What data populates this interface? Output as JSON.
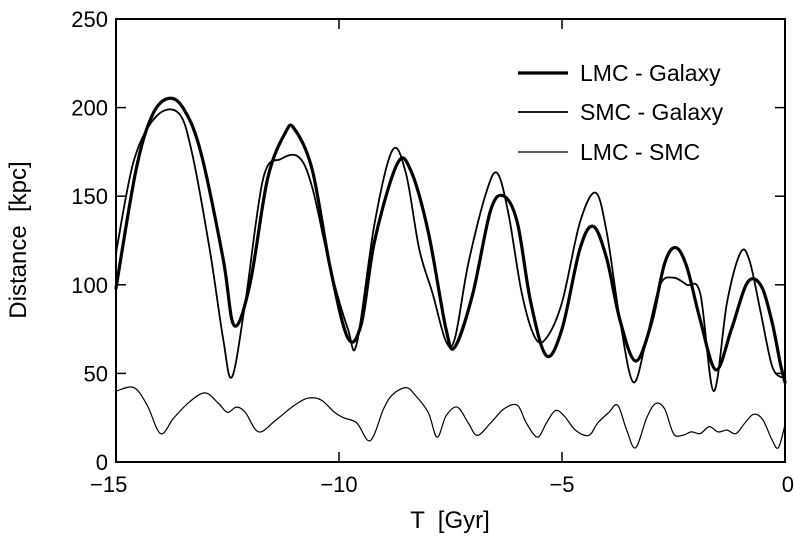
{
  "chart_data": {
    "type": "line",
    "title": "",
    "xlabel": "T  [Gyr]",
    "ylabel": "Distance  [kpc]",
    "xlim": [
      -15,
      0
    ],
    "ylim": [
      0,
      250
    ],
    "xticks": [
      -15,
      -10,
      -5,
      0
    ],
    "xtick_labels": [
      "−15",
      "−10",
      "−5",
      "0"
    ],
    "yticks": [
      0,
      50,
      100,
      150,
      200,
      250
    ],
    "ytick_labels": [
      "0",
      "50",
      "100",
      "150",
      "200",
      "250"
    ],
    "legend_position": "top-right",
    "grid": false,
    "series": [
      {
        "name": "LMC - Galaxy",
        "line": "thick",
        "x": [
          -15.0,
          -14.55,
          -14.2,
          -13.85,
          -13.5,
          -13.1,
          -12.6,
          -12.35,
          -12.0,
          -11.6,
          -11.2,
          -11.0,
          -10.6,
          -10.2,
          -9.8,
          -9.5,
          -9.2,
          -8.7,
          -8.4,
          -8.0,
          -7.6,
          -7.4,
          -7.0,
          -6.6,
          -6.3,
          -6.0,
          -5.7,
          -5.35,
          -5.0,
          -4.6,
          -4.3,
          -4.0,
          -3.7,
          -3.35,
          -3.0,
          -2.7,
          -2.45,
          -2.2,
          -1.9,
          -1.55,
          -1.2,
          -0.85,
          -0.55,
          -0.3,
          -0.1,
          0.0
        ],
        "y": [
          98,
          165,
          195,
          205,
          200,
          175,
          115,
          77,
          100,
          160,
          186,
          188,
          165,
          110,
          70,
          78,
          125,
          168,
          165,
          130,
          75,
          65,
          95,
          142,
          150,
          135,
          90,
          60,
          75,
          120,
          133,
          115,
          80,
          57,
          78,
          112,
          121,
          110,
          80,
          52,
          75,
          101,
          100,
          80,
          55,
          45
        ]
      },
      {
        "name": "SMC - Galaxy",
        "line": "medium",
        "x": [
          -15.0,
          -14.6,
          -14.1,
          -13.6,
          -13.3,
          -12.9,
          -12.6,
          -12.4,
          -12.1,
          -11.7,
          -11.3,
          -10.9,
          -10.6,
          -10.2,
          -9.8,
          -9.6,
          -9.2,
          -8.8,
          -8.5,
          -8.2,
          -7.9,
          -7.6,
          -7.4,
          -7.1,
          -6.7,
          -6.45,
          -6.2,
          -5.9,
          -5.6,
          -5.35,
          -5.0,
          -4.6,
          -4.25,
          -4.0,
          -3.7,
          -3.4,
          -3.1,
          -2.8,
          -2.5,
          -2.2,
          -1.9,
          -1.6,
          -1.3,
          -1.0,
          -0.8,
          -0.55,
          -0.3,
          -0.1,
          0.0
        ],
        "y": [
          118,
          170,
          195,
          197,
          175,
          120,
          70,
          48,
          90,
          160,
          171,
          172,
          155,
          110,
          75,
          67,
          135,
          176,
          163,
          120,
          95,
          68,
          70,
          112,
          152,
          163,
          140,
          95,
          70,
          70,
          90,
          135,
          152,
          130,
          80,
          45,
          70,
          100,
          104,
          100,
          95,
          40,
          90,
          118,
          114,
          85,
          55,
          48,
          50
        ]
      },
      {
        "name": "LMC - SMC",
        "line": "thin",
        "x": [
          -15.0,
          -14.6,
          -14.3,
          -14.0,
          -13.7,
          -13.35,
          -13.0,
          -12.7,
          -12.5,
          -12.3,
          -12.1,
          -11.8,
          -11.4,
          -11.0,
          -10.7,
          -10.4,
          -10.1,
          -9.9,
          -9.6,
          -9.3,
          -9.0,
          -8.8,
          -8.5,
          -8.3,
          -8.0,
          -7.8,
          -7.6,
          -7.35,
          -7.1,
          -6.9,
          -6.6,
          -6.3,
          -6.0,
          -5.8,
          -5.55,
          -5.35,
          -5.15,
          -4.95,
          -4.7,
          -4.4,
          -4.2,
          -3.95,
          -3.75,
          -3.55,
          -3.35,
          -3.1,
          -2.9,
          -2.7,
          -2.5,
          -2.3,
          -2.1,
          -1.9,
          -1.7,
          -1.5,
          -1.3,
          -1.1,
          -0.9,
          -0.7,
          -0.5,
          -0.3,
          -0.15,
          0.0
        ],
        "y": [
          40,
          42,
          32,
          16,
          25,
          34,
          39,
          33,
          28,
          31,
          28,
          17,
          24,
          32,
          36,
          35,
          28,
          25,
          22,
          12,
          30,
          38,
          42,
          38,
          28,
          14,
          26,
          31,
          22,
          15,
          22,
          30,
          32,
          22,
          14,
          22,
          29,
          26,
          18,
          15,
          22,
          28,
          32,
          18,
          8,
          25,
          33,
          30,
          16,
          15,
          17,
          16,
          20,
          17,
          18,
          16,
          22,
          27,
          24,
          13,
          8,
          21
        ]
      }
    ]
  }
}
